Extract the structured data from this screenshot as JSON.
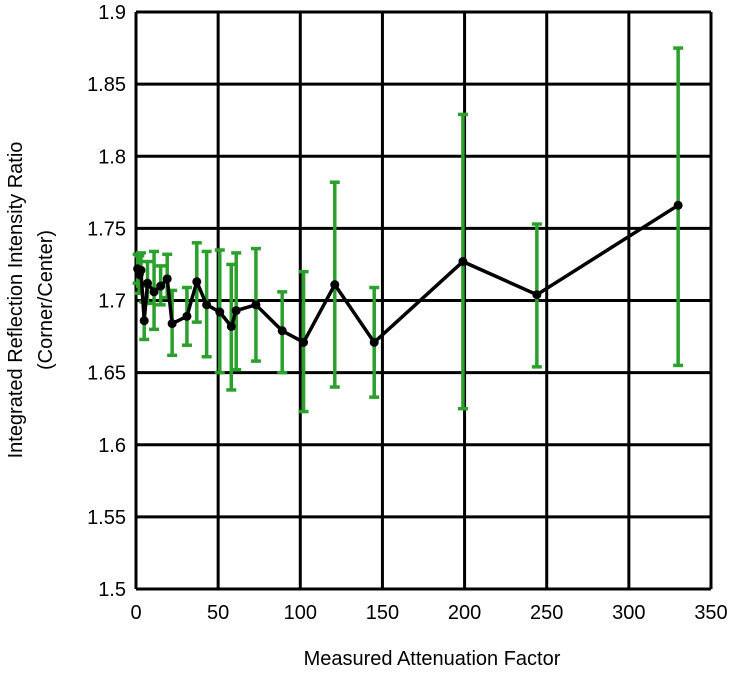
{
  "chart_data": {
    "type": "line",
    "title": "",
    "xlabel": "Measured Attenuation Factor",
    "ylabel_line1": "Integrated Reflection Intensity Ratio",
    "ylabel_line2": "(Corner/Center)",
    "xlim": [
      0,
      350
    ],
    "ylim": [
      1.5,
      1.9
    ],
    "xticks": [
      0,
      50,
      100,
      150,
      200,
      250,
      300,
      350
    ],
    "yticks": [
      1.5,
      1.55,
      1.6,
      1.65,
      1.7,
      1.75,
      1.8,
      1.85,
      1.9
    ],
    "xtick_labels": [
      "0",
      "50",
      "100",
      "150",
      "200",
      "250",
      "300",
      "350"
    ],
    "ytick_labels": [
      "1.5",
      "1.55",
      "1.6",
      "1.65",
      "1.7",
      "1.75",
      "1.8",
      "1.85",
      "1.9"
    ],
    "grid": true,
    "line_color": "#000000",
    "errorbar_color": "#2ca02c",
    "series": [
      {
        "points": [
          {
            "x": 1,
            "y": 1.722,
            "lo": 1.712,
            "hi": 1.732
          },
          {
            "x": 2,
            "y": 1.718,
            "lo": 1.705,
            "hi": 1.731
          },
          {
            "x": 3,
            "y": 1.721,
            "lo": 1.71,
            "hi": 1.733
          },
          {
            "x": 5,
            "y": 1.686,
            "lo": 1.673,
            "hi": 1.699
          },
          {
            "x": 7,
            "y": 1.712,
            "lo": 1.698,
            "hi": 1.727
          },
          {
            "x": 11,
            "y": 1.706,
            "lo": 1.68,
            "hi": 1.734
          },
          {
            "x": 15,
            "y": 1.71,
            "lo": 1.697,
            "hi": 1.724
          },
          {
            "x": 19,
            "y": 1.715,
            "lo": 1.702,
            "hi": 1.732
          },
          {
            "x": 22,
            "y": 1.684,
            "lo": 1.662,
            "hi": 1.707
          },
          {
            "x": 31,
            "y": 1.689,
            "lo": 1.669,
            "hi": 1.709
          },
          {
            "x": 37,
            "y": 1.713,
            "lo": 1.685,
            "hi": 1.74
          },
          {
            "x": 43,
            "y": 1.697,
            "lo": 1.661,
            "hi": 1.734
          },
          {
            "x": 51,
            "y": 1.692,
            "lo": 1.65,
            "hi": 1.735
          },
          {
            "x": 58,
            "y": 1.682,
            "lo": 1.638,
            "hi": 1.725
          },
          {
            "x": 61,
            "y": 1.693,
            "lo": 1.652,
            "hi": 1.733
          },
          {
            "x": 73,
            "y": 1.697,
            "lo": 1.658,
            "hi": 1.736
          },
          {
            "x": 89,
            "y": 1.679,
            "lo": 1.65,
            "hi": 1.706
          },
          {
            "x": 102,
            "y": 1.671,
            "lo": 1.623,
            "hi": 1.72
          },
          {
            "x": 121,
            "y": 1.711,
            "lo": 1.64,
            "hi": 1.782
          },
          {
            "x": 145,
            "y": 1.671,
            "lo": 1.633,
            "hi": 1.709
          },
          {
            "x": 199,
            "y": 1.727,
            "lo": 1.625,
            "hi": 1.829
          },
          {
            "x": 244,
            "y": 1.704,
            "lo": 1.654,
            "hi": 1.753
          },
          {
            "x": 330,
            "y": 1.766,
            "lo": 1.655,
            "hi": 1.875
          }
        ]
      }
    ]
  }
}
